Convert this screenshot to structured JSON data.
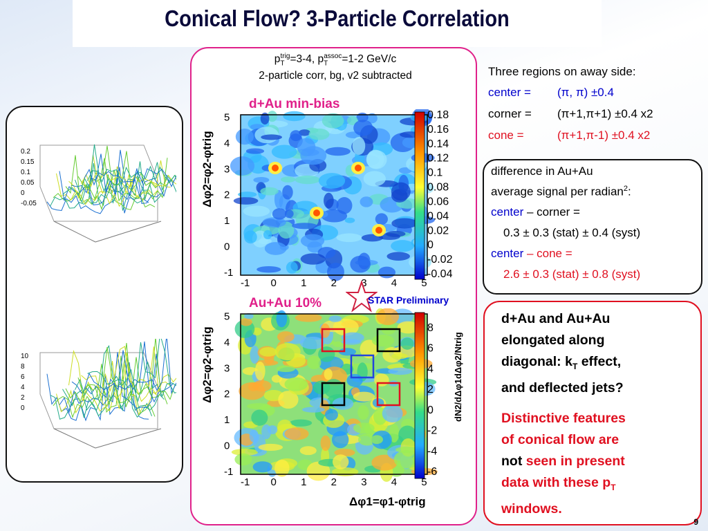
{
  "title": "Conical Flow? 3-Particle Correlation",
  "center": {
    "line1_a": "p",
    "line1_sub1": "T",
    "line1_sup1": "trig",
    "line1_b": "=3-4, p",
    "line1_sub2": "T",
    "line1_sup2": "assoc",
    "line1_c": "=1-2 GeV/c",
    "line2": "2-particle corr, bg, v2 subtracted",
    "label_dau": "d+Au min-bias",
    "label_auau": "Au+Au 10%",
    "star": "STAR Preliminary",
    "yaxis": "Δφ2=φ2-φtrig",
    "xaxis": "Δφ1=φ1-φtrig",
    "zaxis": "dN2/dΔφ1dΔφ2/Ntrig",
    "ticks_xy": [
      "-1",
      "0",
      "1",
      "2",
      "3",
      "4",
      "5"
    ],
    "colorbar_top": [
      "0.18",
      "0.16",
      "0.14",
      "0.12",
      "0.1",
      "0.08",
      "0.06",
      "0.04",
      "0.02",
      "0",
      "-0.02",
      "-0.04"
    ],
    "colorbar_bottom": [
      "8",
      "6",
      "4",
      "2",
      "0",
      "-2",
      "-4",
      "-6"
    ]
  },
  "right": {
    "regions_header": "Three regions on away side:",
    "center_label": "center =",
    "center_val": "(π, π) ±0.4",
    "corner_label": "corner =",
    "corner_val": "(π+1,π+1) ±0.4 x2",
    "cone_label": "cone =",
    "cone_val": "(π+1,π-1) ±0.4 x2",
    "box2": {
      "l1": "difference in Au+Au",
      "l2": "average signal per radian",
      "l2_sup": "2",
      "l2_end": ":",
      "l3_a": "center",
      "l3_b": " – corner =",
      "l4": "0.3 ± 0.3 (stat) ± 0.4 (syst)",
      "l5_a": "center",
      "l5_b": " – cone =",
      "l6": "2.6 ± 0.3 (stat) ± 0.8 (syst)"
    },
    "box3": {
      "l1": "d+Au and Au+Au",
      "l2": "elongated along",
      "l3_a": "diagonal: k",
      "l3_sub": "T",
      "l3_b": " effect,",
      "l4": "and deflected jets?",
      "l5": "Distinctive features",
      "l6": "of conical flow are",
      "l7_a": "not",
      "l7_b": " seen in present",
      "l8_a": "data with these p",
      "l8_sub": "T",
      "l9": "windows."
    }
  },
  "left": {
    "top_ticks": [
      "0.2",
      "0.15",
      "0.1",
      "0.05",
      "0",
      "-0.05"
    ],
    "bottom_ticks": [
      "10",
      "8",
      "6",
      "4",
      "2",
      "0"
    ]
  },
  "page_number": "9",
  "colors": {
    "accent_pink": "#e0208a",
    "accent_red": "#e01020",
    "accent_blue": "#0000cc"
  }
}
